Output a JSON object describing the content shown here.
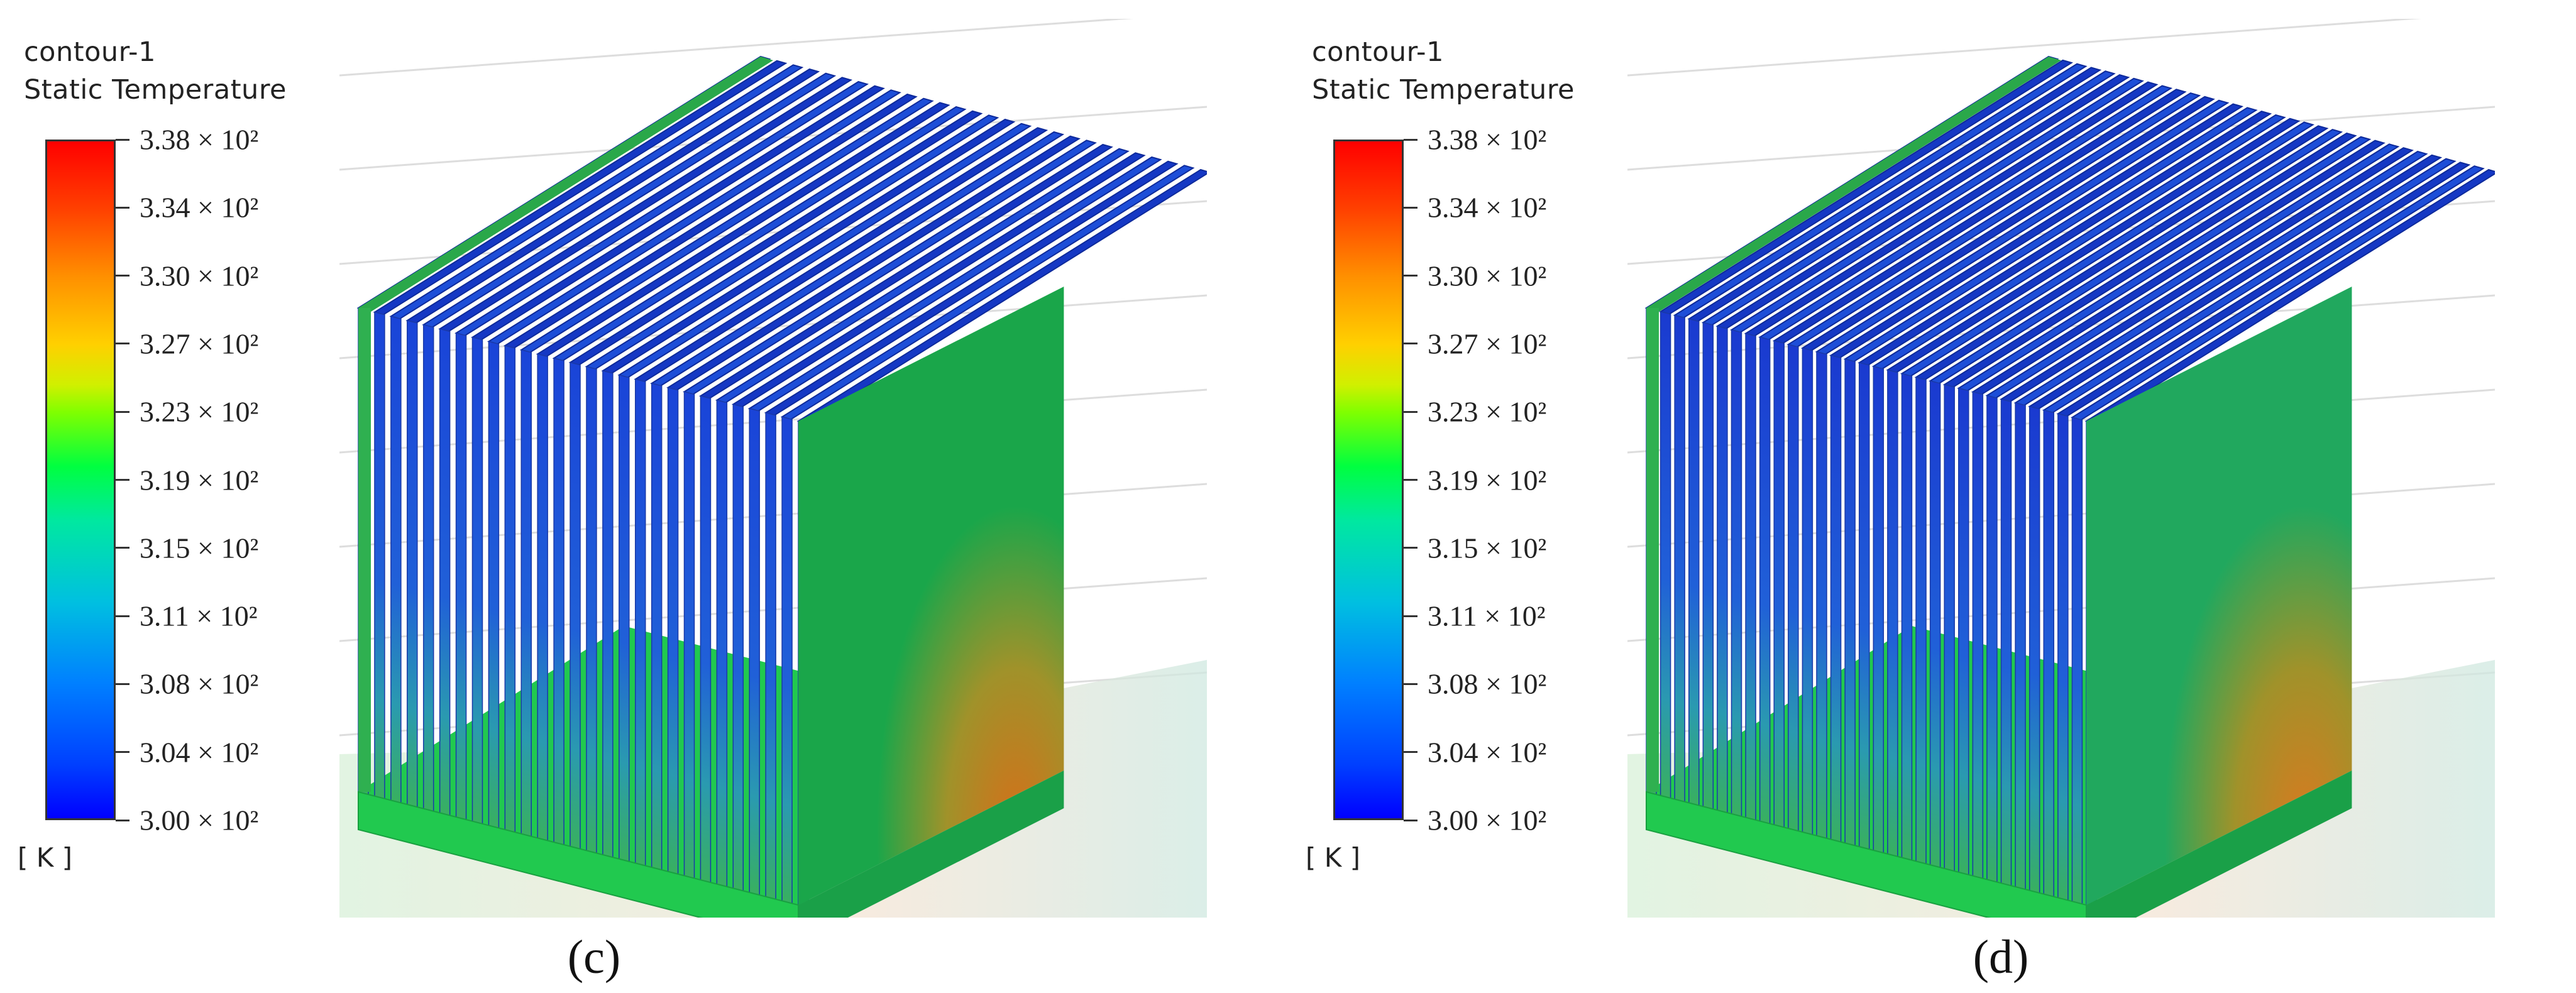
{
  "panels": [
    {
      "contour_name": "contour-1",
      "variable": "Static Temperature",
      "tick_labels": [
        "3.38 × 10²",
        "3.34 × 10²",
        "3.30 × 10²",
        "3.27 × 10²",
        "3.23 × 10²",
        "3.19 × 10²",
        "3.15 × 10²",
        "3.11 × 10²",
        "3.08 × 10²",
        "3.04 × 10²",
        "3.00 × 10²"
      ],
      "unit": "[ K ]",
      "label": "(c)",
      "fin_count": 28,
      "colors": {
        "top": "#1a44d8",
        "side_face": "#1aa64a",
        "base": "#21c94f",
        "hotspot": "#d4701a"
      }
    },
    {
      "contour_name": "contour-1",
      "variable": "Static Temperature",
      "tick_labels": [
        "3.38 × 10²",
        "3.34 × 10²",
        "3.30 × 10²",
        "3.27 × 10²",
        "3.23 × 10²",
        "3.19 × 10²",
        "3.15 × 10²",
        "3.11 × 10²",
        "3.08 × 10²",
        "3.04 × 10²",
        "3.00 × 10²"
      ],
      "unit": "[ K ]",
      "label": "(d)",
      "fin_count": 32,
      "colors": {
        "top": "#1a3ad0",
        "side_face": "#21a85e",
        "base": "#21c94f",
        "hotspot": "#d87a20"
      }
    }
  ]
}
